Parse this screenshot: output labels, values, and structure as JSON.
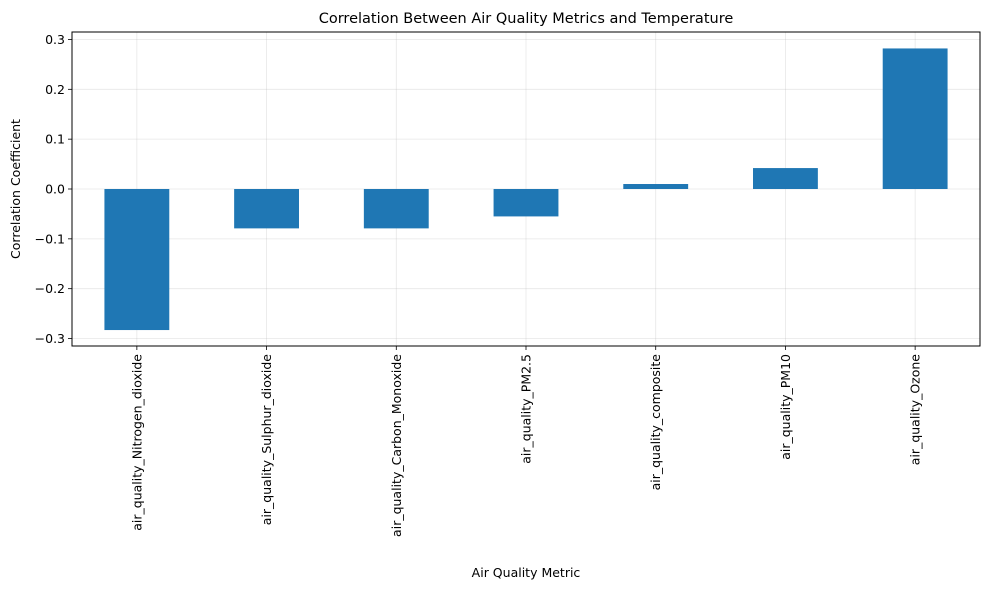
{
  "chart_data": {
    "type": "bar",
    "title": "Correlation Between Air Quality Metrics and Temperature",
    "xlabel": "Air Quality Metric",
    "ylabel": "Correlation Coefficient",
    "categories": [
      "air_quality_Nitrogen_dioxide",
      "air_quality_Sulphur_dioxide",
      "air_quality_Carbon_Monoxide",
      "air_quality_PM2.5",
      "air_quality_composite",
      "air_quality_PM10",
      "air_quality_Ozone"
    ],
    "values": [
      -0.283,
      -0.079,
      -0.079,
      -0.055,
      0.01,
      0.042,
      0.282
    ],
    "ylim": [
      -0.315,
      0.315
    ],
    "yticks": [
      -0.3,
      -0.2,
      -0.1,
      0.0,
      0.1,
      0.2,
      0.3
    ],
    "ytick_labels": [
      "−0.3",
      "−0.2",
      "−0.1",
      "0.0",
      "0.1",
      "0.2",
      "0.3"
    ],
    "grid": true,
    "legend": "none",
    "bar_color": "#1f77b4"
  }
}
